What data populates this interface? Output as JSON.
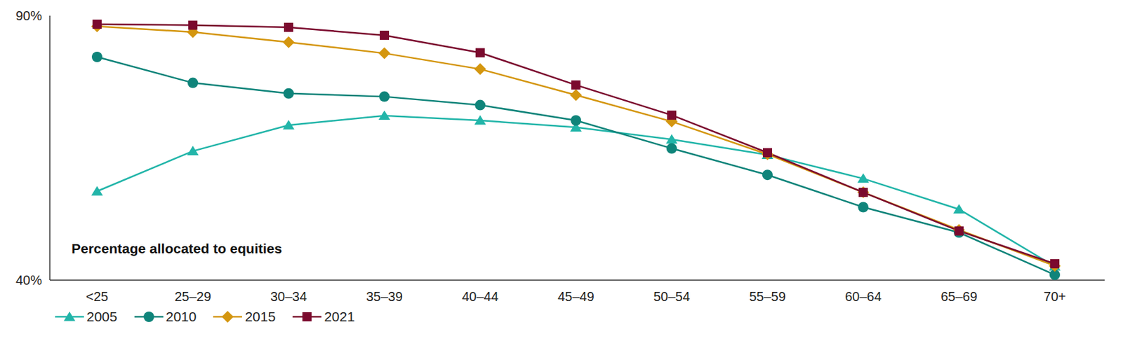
{
  "chart_data": {
    "type": "line",
    "annotation": "Percentage allocated to equities",
    "categories": [
      "<25",
      "25–29",
      "30–34",
      "35–39",
      "40–44",
      "45–49",
      "50–54",
      "55–59",
      "60–64",
      "65–69",
      "70+"
    ],
    "series": [
      {
        "name": "2005",
        "color": "#22b5a9",
        "marker": "triangle",
        "values": [
          56.8,
          64.4,
          69.3,
          71.1,
          70.2,
          68.9,
          66.6,
          63.7,
          59.2,
          53.4,
          42.6
        ]
      },
      {
        "name": "2010",
        "color": "#0f847a",
        "marker": "circle",
        "values": [
          82.2,
          77.3,
          75.3,
          74.7,
          73.1,
          70.2,
          64.9,
          59.9,
          53.8,
          49.0,
          41.0
        ]
      },
      {
        "name": "2015",
        "color": "#d4960f",
        "marker": "diamond",
        "values": [
          88.0,
          86.9,
          85.0,
          82.9,
          79.9,
          75.0,
          70.0,
          63.8,
          56.6,
          49.5,
          42.7
        ]
      },
      {
        "name": "2021",
        "color": "#7b0a2e",
        "marker": "square",
        "values": [
          88.4,
          88.2,
          87.8,
          86.3,
          83.0,
          76.9,
          71.2,
          64.1,
          56.6,
          49.3,
          43.1
        ]
      }
    ],
    "ylim": [
      40,
      90
    ],
    "yticks": [
      {
        "value": 40,
        "label": "40%"
      },
      {
        "value": 90,
        "label": "90%"
      }
    ],
    "legend": "bottom left"
  }
}
